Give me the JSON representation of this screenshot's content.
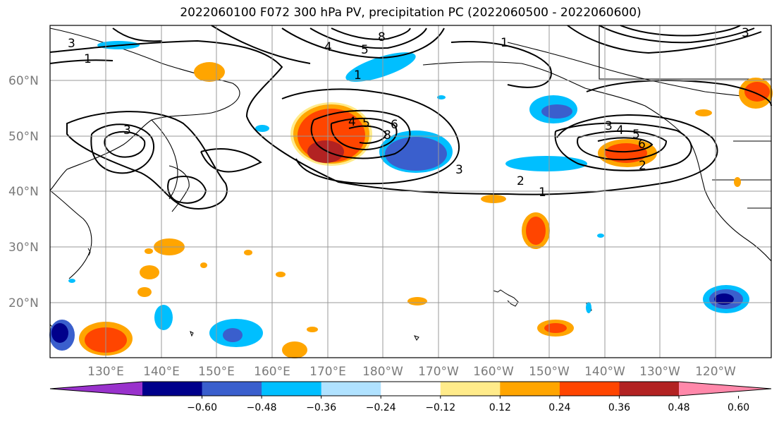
{
  "title": "2022060100 F072 300 hPa PV, precipitation PC (2022060500 - 2022060600)",
  "lat_labels": [
    "60°N",
    "50°N",
    "40°N",
    "30°N",
    "20°N"
  ],
  "lon_labels": [
    "130°E",
    "140°E",
    "150°E",
    "160°E",
    "170°E",
    "180°W",
    "170°W",
    "160°W",
    "150°W",
    "140°W",
    "130°W",
    "120°W"
  ],
  "colorbar": {
    "ticks": [
      "−0.60",
      "−0.48",
      "−0.36",
      "−0.24",
      "−0.12",
      "0.12",
      "0.24",
      "0.36",
      "0.48",
      "0.60"
    ],
    "colors": [
      "#9932cc",
      "#00008b",
      "#3a5fcd",
      "#00bfff",
      "#b0e2ff",
      "#ffffff",
      "#ffeb8a",
      "#ffa500",
      "#ff4500",
      "#b22222",
      "#ff88aa"
    ]
  },
  "contour_labels": [
    "3",
    "1",
    "4",
    "5",
    "8",
    "3",
    "1",
    "4",
    "5",
    "6",
    "8",
    "3",
    "2",
    "1",
    "3",
    "4",
    "5",
    "6",
    "2",
    "3",
    "1"
  ]
}
